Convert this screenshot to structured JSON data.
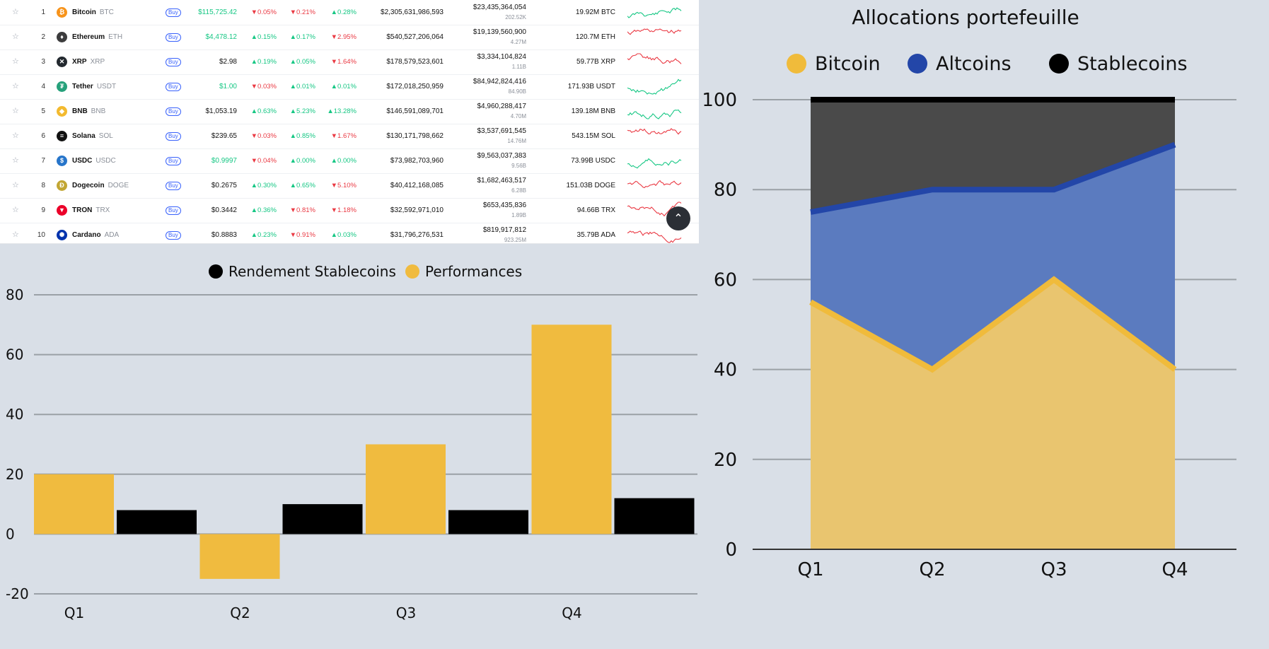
{
  "crypto_table": {
    "buy_label": "Buy",
    "rows": [
      {
        "rank": "1",
        "name": "Bitcoin",
        "symbol": "BTC",
        "price": "$115,725.42",
        "price_trend": "up",
        "h1": "0.05%",
        "h1_dir": "down",
        "h24": "0.21%",
        "h24_dir": "down",
        "d7": "0.28%",
        "d7_dir": "up",
        "market_cap": "$2,305,631,986,593",
        "volume": "$23,435,364,054",
        "volume_sub": "202.52K",
        "supply": "19.92M BTC",
        "spark": "up",
        "icon_color": "#f7931a",
        "icon_glyph": "₿"
      },
      {
        "rank": "2",
        "name": "Ethereum",
        "symbol": "ETH",
        "price": "$4,478.12",
        "price_trend": "up",
        "h1": "0.15%",
        "h1_dir": "up",
        "h24": "0.17%",
        "h24_dir": "up",
        "d7": "2.95%",
        "d7_dir": "down",
        "market_cap": "$540,527,206,064",
        "volume": "$19,139,560,900",
        "volume_sub": "4.27M",
        "supply": "120.7M ETH",
        "spark": "down",
        "icon_color": "#3c3c3d",
        "icon_glyph": "♦"
      },
      {
        "rank": "3",
        "name": "XRP",
        "symbol": "XRP",
        "price": "$2.98",
        "price_trend": "neutral",
        "h1": "0.19%",
        "h1_dir": "up",
        "h24": "0.05%",
        "h24_dir": "up",
        "d7": "1.64%",
        "d7_dir": "down",
        "market_cap": "$178,579,523,601",
        "volume": "$3,334,104,824",
        "volume_sub": "1.11B",
        "supply": "59.77B XRP",
        "spark": "down",
        "icon_color": "#23292f",
        "icon_glyph": "✕"
      },
      {
        "rank": "4",
        "name": "Tether",
        "symbol": "USDT",
        "price": "$1.00",
        "price_trend": "up",
        "h1": "0.03%",
        "h1_dir": "down",
        "h24": "0.01%",
        "h24_dir": "up",
        "d7": "0.01%",
        "d7_dir": "up",
        "market_cap": "$172,018,250,959",
        "volume": "$84,942,824,416",
        "volume_sub": "84.90B",
        "supply": "171.93B USDT",
        "spark": "up",
        "icon_color": "#26a17b",
        "icon_glyph": "₮"
      },
      {
        "rank": "5",
        "name": "BNB",
        "symbol": "BNB",
        "price": "$1,053.19",
        "price_trend": "neutral",
        "h1": "0.63%",
        "h1_dir": "up",
        "h24": "5.23%",
        "h24_dir": "up",
        "d7": "13.28%",
        "d7_dir": "up",
        "market_cap": "$146,591,089,701",
        "volume": "$4,960,288,417",
        "volume_sub": "4.70M",
        "supply": "139.18M BNB",
        "spark": "up",
        "icon_color": "#f3ba2f",
        "icon_glyph": "◆"
      },
      {
        "rank": "6",
        "name": "Solana",
        "symbol": "SOL",
        "price": "$239.65",
        "price_trend": "neutral",
        "h1": "0.03%",
        "h1_dir": "down",
        "h24": "0.85%",
        "h24_dir": "up",
        "d7": "1.67%",
        "d7_dir": "down",
        "market_cap": "$130,171,798,662",
        "volume": "$3,537,691,545",
        "volume_sub": "14.76M",
        "supply": "543.15M SOL",
        "spark": "down",
        "icon_color": "#111111",
        "icon_glyph": "≡"
      },
      {
        "rank": "7",
        "name": "USDC",
        "symbol": "USDC",
        "price": "$0.9997",
        "price_trend": "up",
        "h1": "0.04%",
        "h1_dir": "down",
        "h24": "0.00%",
        "h24_dir": "up",
        "d7": "0.00%",
        "d7_dir": "up",
        "market_cap": "$73,982,703,960",
        "volume": "$9,563,037,383",
        "volume_sub": "9.56B",
        "supply": "73.99B USDC",
        "spark": "up",
        "icon_color": "#2775ca",
        "icon_glyph": "$"
      },
      {
        "rank": "8",
        "name": "Dogecoin",
        "symbol": "DOGE",
        "price": "$0.2675",
        "price_trend": "neutral",
        "h1": "0.30%",
        "h1_dir": "up",
        "h24": "0.65%",
        "h24_dir": "up",
        "d7": "5.10%",
        "d7_dir": "down",
        "market_cap": "$40,412,168,085",
        "volume": "$1,682,463,517",
        "volume_sub": "6.28B",
        "supply": "151.03B DOGE",
        "spark": "down",
        "icon_color": "#c2a633",
        "icon_glyph": "Ð"
      },
      {
        "rank": "9",
        "name": "TRON",
        "symbol": "TRX",
        "price": "$0.3442",
        "price_trend": "neutral",
        "h1": "0.36%",
        "h1_dir": "up",
        "h24": "0.81%",
        "h24_dir": "down",
        "d7": "1.18%",
        "d7_dir": "down",
        "market_cap": "$32,592,971,010",
        "volume": "$653,435,836",
        "volume_sub": "1.89B",
        "supply": "94.66B TRX",
        "spark": "down",
        "icon_color": "#eb0029",
        "icon_glyph": "▼"
      },
      {
        "rank": "10",
        "name": "Cardano",
        "symbol": "ADA",
        "price": "$0.8883",
        "price_trend": "neutral",
        "h1": "0.23%",
        "h1_dir": "up",
        "h24": "0.91%",
        "h24_dir": "down",
        "d7": "0.03%",
        "d7_dir": "up",
        "market_cap": "$31,796,276,531",
        "volume": "$819,917,812",
        "volume_sub": "923.25M",
        "supply": "35.79B ADA",
        "spark": "down",
        "icon_color": "#0033ad",
        "icon_glyph": "✺"
      }
    ]
  },
  "colors": {
    "bitcoin_fill": "#e9c56f",
    "bitcoin_line": "#f0bb3b",
    "altcoins_fill": "#5b7bbf",
    "altcoins_line": "#2346a8",
    "stablecoins_fill": "#4a4a4a",
    "stablecoins_line": "#000000",
    "performance_bar": "#f0bb3f",
    "stable_yield_bar": "#000000",
    "grid": "#9aa0a6",
    "up": "#16c784",
    "down": "#ea3943"
  },
  "chart_data": [
    {
      "type": "bar",
      "title": "",
      "categories": [
        "Q1",
        "Q2",
        "Q3",
        "Q4"
      ],
      "series": [
        {
          "name": "Performances",
          "values": [
            20,
            -15,
            30,
            70
          ]
        },
        {
          "name": "Rendement Stablecoins",
          "values": [
            8,
            10,
            8,
            12
          ]
        }
      ],
      "legend": [
        "Rendement Stablecoins",
        "Performances"
      ],
      "yticks": [
        "80",
        "60",
        "40",
        "20",
        "0",
        "-20"
      ],
      "ylim": [
        -20,
        80
      ],
      "xlabel": "",
      "ylabel": "",
      "legend_position": "top"
    },
    {
      "type": "area",
      "title": "Allocations portefeuille",
      "categories": [
        "Q1",
        "Q2",
        "Q3",
        "Q4"
      ],
      "series": [
        {
          "name": "Bitcoin",
          "values": [
            55,
            40,
            60,
            40
          ]
        },
        {
          "name": "Altcoins",
          "values": [
            75,
            80,
            80,
            90
          ]
        },
        {
          "name": "Stablecoins",
          "values": [
            100,
            100,
            100,
            100
          ]
        }
      ],
      "legend": [
        "Bitcoin",
        "Altcoins",
        "Stablecoins"
      ],
      "yticks": [
        "100",
        "80",
        "60",
        "40",
        "20",
        "0"
      ],
      "ylim": [
        0,
        100
      ],
      "stacked_cumulative": true,
      "legend_position": "top"
    }
  ]
}
